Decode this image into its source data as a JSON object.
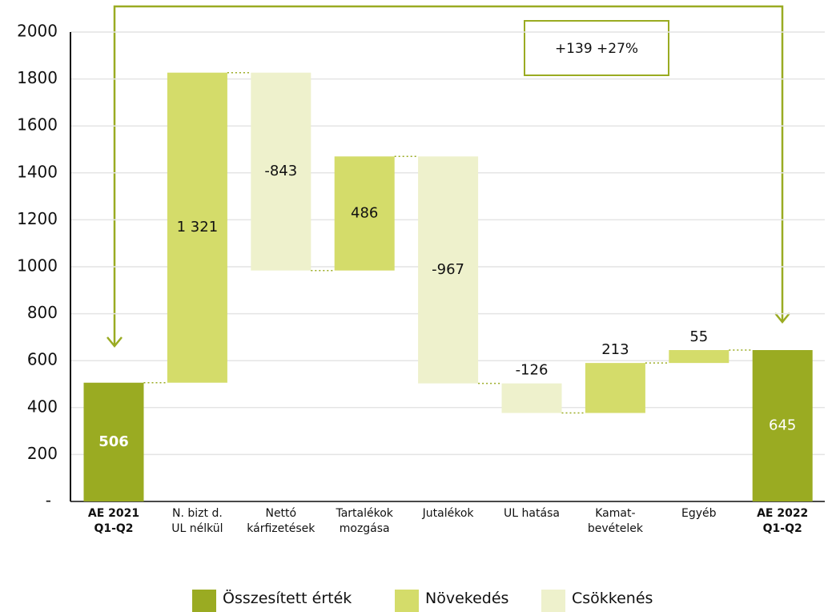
{
  "chart_data": {
    "type": "waterfall",
    "categories": [
      "AE 2021\nQ1-Q2",
      "N. bizt d.\nUL nélkül",
      "Nettó\nkárfizetések",
      "Tartalékok\nmozgása",
      "Jutalékok",
      "UL hatása",
      "Kamat-\nbevételek",
      "Egyéb",
      "AE 2022\nQ1-Q2"
    ],
    "values": [
      506,
      1321,
      -843,
      486,
      -967,
      -126,
      213,
      55,
      645
    ],
    "value_labels": [
      "506",
      "1 321",
      "-843",
      "486",
      "-967",
      "-126",
      "213",
      "55",
      "645"
    ],
    "legend_index": [
      0,
      1,
      2,
      1,
      2,
      2,
      1,
      1,
      0
    ],
    "legend": [
      {
        "name": "Összesített érték",
        "color": "#9aab22"
      },
      {
        "name": "Növekedés",
        "color": "#d4dc6a"
      },
      {
        "name": "Csökkenés",
        "color": "#eef1cc"
      }
    ],
    "ylim": [
      0,
      2000
    ],
    "yticks": [
      {
        "value": 0,
        "label": "-"
      },
      200,
      400,
      600,
      800,
      1000,
      1200,
      1400,
      1600,
      1800,
      2000
    ],
    "grid": true,
    "annotation": "+139 +27%"
  }
}
